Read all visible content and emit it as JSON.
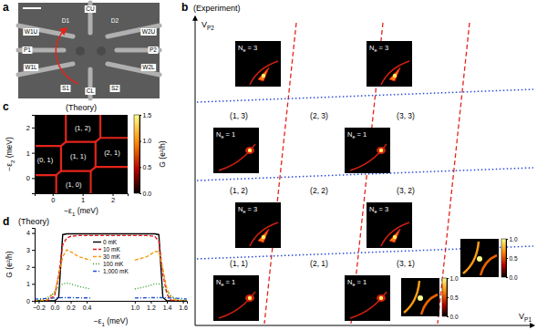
{
  "chart_data": [
    {
      "panel": "a",
      "type": "device_image",
      "labels": [
        "CU",
        "D1",
        "D2",
        "W1U",
        "W2U",
        "P1",
        "P2",
        "W1L",
        "W2L",
        "S1",
        "CL",
        "S2"
      ]
    },
    {
      "panel": "b",
      "type": "stability_diagram",
      "title": "(Experiment)",
      "x_label": {
        "text": "V",
        "subscript": "P1"
      },
      "y_label": {
        "text": "V",
        "subscript": "P2"
      },
      "tick_labels": false,
      "region_labels": [
        "(1, 3)",
        "(2, 3)",
        "(3, 3)",
        "(1, 2)",
        "(2, 2)",
        "(3, 2)",
        "(1, 1)",
        "(2, 1)",
        "(3, 1)"
      ],
      "insets": [
        {
          "text": "N",
          "subscript": "e",
          "suffix": " = 3"
        },
        {
          "text": "N",
          "subscript": "e",
          "suffix": " = 3"
        },
        {
          "text": "N",
          "subscript": "e",
          "suffix": " = 1"
        },
        {
          "text": "N",
          "subscript": "e",
          "suffix": " = 1"
        },
        {
          "text": "N",
          "subscript": "e",
          "suffix": " = 3"
        },
        {
          "text": "N",
          "subscript": "e",
          "suffix": " = 3"
        },
        {
          "text": "N",
          "subscript": "e",
          "suffix": " = 1"
        },
        {
          "text": "N",
          "subscript": "e",
          "suffix": " = 1"
        }
      ],
      "colorbars": [
        {
          "range": [
            0,
            1
          ],
          "ticks": [
            {
              "value": 0,
              "label": "0.0"
            },
            {
              "value": 0.5,
              "label": "0.5"
            },
            {
              "value": 1,
              "label": "1.0"
            }
          ]
        },
        {
          "range": [
            0,
            1
          ],
          "ticks": [
            {
              "value": 0,
              "label": "0.0"
            },
            {
              "value": 0.5,
              "label": "0.5"
            },
            {
              "value": 1,
              "label": "1.0"
            }
          ]
        }
      ]
    },
    {
      "panel": "c",
      "type": "heatmap",
      "title": "(Theory)",
      "x_label": {
        "text": "−ε",
        "subscript": "1",
        "suffix": " (meV)"
      },
      "y_label": {
        "text": "−ε",
        "subscript": "2",
        "suffix": " (meV)"
      },
      "xlim": [
        -0.6,
        2.5
      ],
      "xticks": [
        0,
        1,
        2
      ],
      "ylim": [
        -0.6,
        2.5
      ],
      "yticks": [
        0,
        1,
        2
      ],
      "color": "#e3241b",
      "boundaries": [
        {
          "x": [
            0.12,
            0.28
          ],
          "y": [
            0.12,
            0.28
          ]
        },
        {
          "x": [
            1.27,
            1.43
          ],
          "y": [
            0.28,
            0.44
          ]
        },
        {
          "x": [
            0.28,
            0.44
          ],
          "y": [
            1.27,
            1.43
          ]
        },
        {
          "x": [
            1.43,
            1.59
          ],
          "y": [
            1.43,
            1.59
          ]
        },
        {
          "x": [
            0.12,
            0.12
          ],
          "y": [
            -0.6,
            0.12
          ]
        },
        {
          "x": [
            0.28,
            0.28
          ],
          "y": [
            0.28,
            1.27
          ]
        },
        {
          "x": [
            0.44,
            0.44
          ],
          "y": [
            1.43,
            2.5
          ]
        },
        {
          "x": [
            1.27,
            1.27
          ],
          "y": [
            -0.6,
            0.28
          ]
        },
        {
          "x": [
            1.43,
            1.43
          ],
          "y": [
            0.44,
            1.43
          ]
        },
        {
          "x": [
            1.59,
            1.59
          ],
          "y": [
            1.59,
            2.5
          ]
        },
        {
          "x": [
            -0.6,
            0.12
          ],
          "y": [
            0.12,
            0.12
          ]
        },
        {
          "x": [
            0.28,
            1.27
          ],
          "y": [
            0.28,
            0.28
          ]
        },
        {
          "x": [
            1.43,
            2.5
          ],
          "y": [
            0.44,
            0.44
          ]
        },
        {
          "x": [
            -0.6,
            0.28
          ],
          "y": [
            1.27,
            1.27
          ]
        },
        {
          "x": [
            0.44,
            1.43
          ],
          "y": [
            1.43,
            1.43
          ]
        },
        {
          "x": [
            1.59,
            2.5
          ],
          "y": [
            1.59,
            1.59
          ]
        }
      ],
      "region_labels": [
        {
          "text": "(0, 1)",
          "x": -0.25,
          "y": 0.7
        },
        {
          "text": "(1, 0)",
          "x": 0.7,
          "y": -0.25
        },
        {
          "text": "(1, 1)",
          "x": 0.85,
          "y": 0.85
        },
        {
          "text": "(2, 1)",
          "x": 1.98,
          "y": 1.0
        },
        {
          "text": "(1, 2)",
          "x": 1.0,
          "y": 1.98
        }
      ],
      "colorbar": {
        "label": "G (e²/h)",
        "range": [
          0,
          1.5
        ],
        "ticks": [
          {
            "value": 0,
            "label": "0.0"
          },
          {
            "value": 0.5,
            "label": "0.5"
          },
          {
            "value": 1,
            "label": "1.0"
          },
          {
            "value": 1.5,
            "label": "1.5"
          }
        ]
      }
    },
    {
      "panel": "d",
      "type": "line",
      "title": "(Theory)",
      "x_label": {
        "text": "−ε",
        "subscript": "1",
        "suffix": " (meV)"
      },
      "y_label": "G (e²/h)",
      "xlim": [
        -0.25,
        1.65
      ],
      "xticks": [
        {
          "value": -0.2,
          "label": "−0.2"
        },
        {
          "value": 0,
          "label": "0.0"
        },
        0.2,
        0.4,
        {
          "value": 1,
          "label": "1.0"
        },
        1.2,
        1.4,
        1.6
      ],
      "ylim": [
        0,
        4.3
      ],
      "yticks": [
        0,
        1,
        2,
        3,
        4
      ],
      "legend": "top",
      "x": [
        -0.25,
        -0.1,
        0,
        0.05,
        0.1,
        0.15,
        0.2,
        0.3,
        0.45,
        0.6,
        1.0,
        1.15,
        1.25,
        1.3,
        1.35,
        1.4,
        1.45,
        1.5,
        1.6,
        1.65
      ],
      "series": [
        {
          "name": "0 mK",
          "color": "#000000",
          "line_style": "solid",
          "values": [
            0,
            0,
            0,
            0.2,
            3.9,
            3.95,
            3.95,
            3.95,
            3.95,
            3.95,
            3.95,
            3.95,
            3.95,
            3.9,
            0.2,
            0,
            0,
            0,
            0,
            0
          ]
        },
        {
          "name": "10 mK",
          "color": "#e41a1c",
          "line_style": "dashed",
          "values": [
            0,
            0,
            0.3,
            1.5,
            3.3,
            3.7,
            3.8,
            3.85,
            3.85,
            3.85,
            3.85,
            3.85,
            3.8,
            3.5,
            1.6,
            0.4,
            0.05,
            0,
            0,
            0
          ]
        },
        {
          "name": "30 mK",
          "color": "#f39c12",
          "line_style": "dashed",
          "values": [
            0,
            0.05,
            0.5,
            1.5,
            2.6,
            3.0,
            2.9,
            2.6,
            2.4,
            null,
            2.4,
            2.6,
            2.9,
            2.9,
            1.9,
            0.7,
            0.2,
            0.05,
            0,
            0
          ]
        },
        {
          "name": "100 mK",
          "color": "#2ca02c",
          "line_style": "dotted",
          "values": [
            0,
            0.15,
            0.5,
            0.8,
            1.0,
            1.05,
            1.0,
            0.85,
            0.7,
            null,
            0.7,
            0.85,
            1.0,
            1.0,
            0.85,
            0.55,
            0.3,
            0.15,
            0.03,
            0
          ]
        },
        {
          "name": "1,000 mK",
          "color": "#1f4fd6",
          "line_style": "dashdot",
          "values": [
            0.1,
            0.14,
            0.17,
            0.18,
            0.19,
            0.19,
            0.19,
            0.18,
            0.17,
            null,
            0.17,
            0.18,
            0.19,
            0.19,
            0.19,
            0.18,
            0.17,
            0.16,
            0.13,
            0.1
          ]
        }
      ]
    }
  ]
}
